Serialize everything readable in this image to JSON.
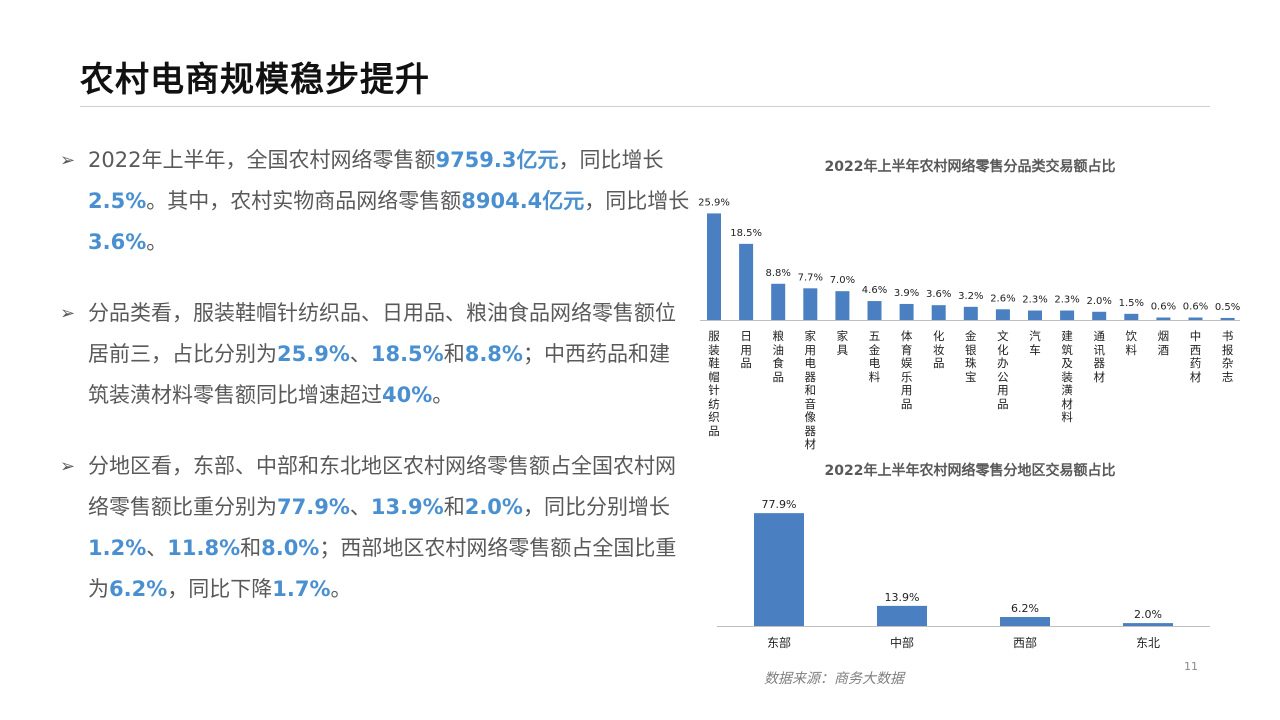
{
  "title": "农村电商规模稳步提升",
  "bullets": [
    [
      {
        "t": "2022年上半年，全国农村网络零售额"
      },
      {
        "t": "9759.3亿元",
        "hl": true
      },
      {
        "t": "，同比增长"
      },
      {
        "t": "2.5%",
        "hl": true
      },
      {
        "t": "。其中，农村实物商品网络零售额"
      },
      {
        "t": "8904.4亿元",
        "hl": true
      },
      {
        "t": "，同比增长"
      },
      {
        "t": "3.6%",
        "hl": true
      },
      {
        "t": "。"
      }
    ],
    [
      {
        "t": "分品类看，服装鞋帽针纺织品、日用品、粮油食品网络零售额位居前三，占比分别为"
      },
      {
        "t": "25.9%",
        "hl": true
      },
      {
        "t": "、"
      },
      {
        "t": "18.5%",
        "hl": true
      },
      {
        "t": "和"
      },
      {
        "t": "8.8%",
        "hl": true
      },
      {
        "t": "；中西药品和建筑装潢材料零售额同比增速超过"
      },
      {
        "t": "40%",
        "hl": true
      },
      {
        "t": "。"
      }
    ],
    [
      {
        "t": "分地区看，东部、中部和东北地区农村网络零售额占全国农村网络零售额比重分别为"
      },
      {
        "t": "77.9%",
        "hl": true
      },
      {
        "t": "、"
      },
      {
        "t": "13.9%",
        "hl": true
      },
      {
        "t": "和"
      },
      {
        "t": "2.0%",
        "hl": true
      },
      {
        "t": "，同比分别增长"
      },
      {
        "t": "1.2%",
        "hl": true
      },
      {
        "t": "、"
      },
      {
        "t": "11.8%",
        "hl": true
      },
      {
        "t": "和"
      },
      {
        "t": "8.0%",
        "hl": true
      },
      {
        "t": "；西部地区农村网络零售额占全国比重为"
      },
      {
        "t": "6.2%",
        "hl": true
      },
      {
        "t": "，同比下降"
      },
      {
        "t": "1.7%",
        "hl": true
      },
      {
        "t": "。"
      }
    ]
  ],
  "bullet_marker": "➢",
  "colors": {
    "bar": "#4a7fc1",
    "highlight": "#4a90d0",
    "body_text": "#595959"
  },
  "chart_data": [
    {
      "type": "bar",
      "title": "2022年上半年农村网络零售分品类交易额占比",
      "categories": [
        "服装鞋帽 针纺织品",
        "日用品",
        "粮油 食品",
        "家用电器和音像器材",
        "家具",
        "五金 电料",
        "体育 娱乐用品",
        "化妆品",
        "金银珠宝",
        "文化办公用品",
        "汽车",
        "建筑及装潢材料",
        "通讯器材",
        "饮料",
        "烟酒",
        "中西药材",
        "书报杂志"
      ],
      "values": [
        25.9,
        18.5,
        8.8,
        7.7,
        7.0,
        4.6,
        3.9,
        3.6,
        3.2,
        2.6,
        2.3,
        2.3,
        2.0,
        1.5,
        0.6,
        0.6,
        0.5
      ],
      "data_labels": [
        "25.9%",
        "18.5%",
        "8.8%",
        "7.7%",
        "7.0%",
        "4.6%",
        "3.9%",
        "3.6%",
        "3.2%",
        "2.6%",
        "2.3%",
        "2.3%",
        "2.0%",
        "1.5%",
        "0.6%",
        "0.6%",
        "0.5%"
      ],
      "unit": "%",
      "ylim": [
        0,
        26
      ]
    },
    {
      "type": "bar",
      "title": "2022年上半年农村网络零售分地区交易额占比",
      "categories": [
        "东部",
        "中部",
        "西部",
        "东北"
      ],
      "values": [
        77.9,
        13.9,
        6.2,
        2.0
      ],
      "data_labels": [
        "77.9%",
        "13.9%",
        "6.2%",
        "2.0%"
      ],
      "unit": "%",
      "ylim": [
        0,
        78
      ]
    }
  ],
  "source": "数据来源：商务大数据",
  "page_number": "11"
}
